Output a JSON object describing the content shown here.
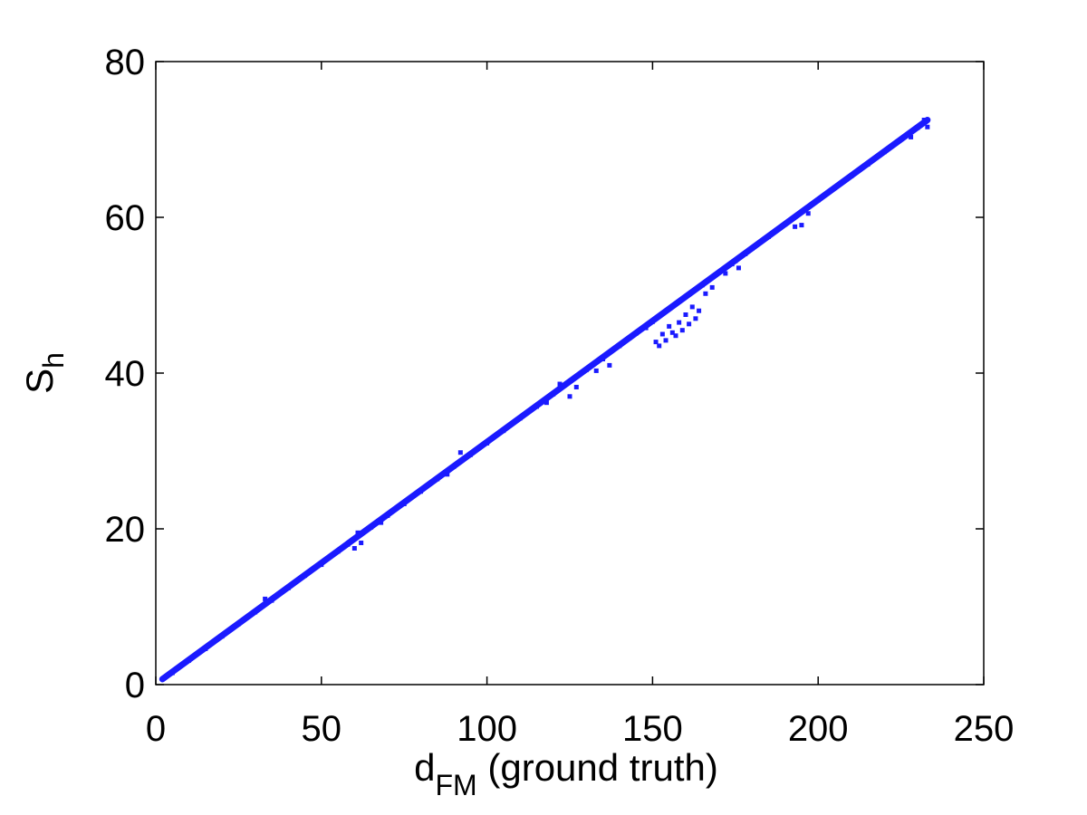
{
  "chart_data": {
    "type": "scatter",
    "title": "",
    "xlabel": "d_FM (ground truth)",
    "xlabel_parts": {
      "base": "d",
      "sub": "FM",
      "rest": " (ground truth)"
    },
    "ylabel": "S_h",
    "ylabel_parts": {
      "base": "S",
      "sub": "h"
    },
    "xlim": [
      0,
      250
    ],
    "ylim": [
      0,
      80
    ],
    "xticks": [
      0,
      50,
      100,
      150,
      200,
      250
    ],
    "xtick_labels": [
      "0",
      "50",
      "100",
      "150",
      "200",
      "250"
    ],
    "yticks": [
      0,
      20,
      40,
      60,
      80
    ],
    "ytick_labels": [
      "0",
      "20",
      "40",
      "60",
      "80"
    ],
    "grid": false,
    "marker": "dot",
    "series": [
      {
        "color": "#1a1aff",
        "trend": {
          "x": [
            2,
            233
          ],
          "y": [
            0.7,
            72.5
          ]
        },
        "points": [
          [
            5,
            1.5
          ],
          [
            10,
            3.1
          ],
          [
            15,
            4.6
          ],
          [
            20,
            6.2
          ],
          [
            25,
            7.8
          ],
          [
            30,
            9.3
          ],
          [
            33,
            11.0
          ],
          [
            35,
            10.8
          ],
          [
            40,
            12.4
          ],
          [
            45,
            14.0
          ],
          [
            50,
            15.4
          ],
          [
            55,
            17.1
          ],
          [
            58,
            18.0
          ],
          [
            60,
            17.5
          ],
          [
            61,
            19.5
          ],
          [
            62,
            18.2
          ],
          [
            65,
            20.2
          ],
          [
            68,
            20.8
          ],
          [
            70,
            21.7
          ],
          [
            75,
            23.2
          ],
          [
            80,
            24.8
          ],
          [
            85,
            26.4
          ],
          [
            88,
            27.0
          ],
          [
            90,
            28.0
          ],
          [
            92,
            29.8
          ],
          [
            95,
            29.5
          ],
          [
            100,
            31.0
          ],
          [
            105,
            32.6
          ],
          [
            110,
            34.2
          ],
          [
            115,
            35.7
          ],
          [
            118,
            36.2
          ],
          [
            120,
            37.3
          ],
          [
            122,
            38.6
          ],
          [
            125,
            37.0
          ],
          [
            127,
            38.2
          ],
          [
            130,
            40.4
          ],
          [
            133,
            40.3
          ],
          [
            135,
            41.8
          ],
          [
            137,
            41.0
          ],
          [
            140,
            43.5
          ],
          [
            143,
            44.5
          ],
          [
            145,
            45.1
          ],
          [
            148,
            45.8
          ],
          [
            150,
            46.6
          ],
          [
            151,
            44.0
          ],
          [
            152,
            43.5
          ],
          [
            153,
            45.0
          ],
          [
            154,
            44.2
          ],
          [
            155,
            46.0
          ],
          [
            156,
            45.2
          ],
          [
            157,
            44.8
          ],
          [
            158,
            46.5
          ],
          [
            159,
            45.5
          ],
          [
            160,
            47.5
          ],
          [
            161,
            46.3
          ],
          [
            162,
            48.5
          ],
          [
            163,
            47.0
          ],
          [
            164,
            48.0
          ],
          [
            165,
            51.3
          ],
          [
            166,
            50.2
          ],
          [
            168,
            51.0
          ],
          [
            170,
            52.9
          ],
          [
            172,
            52.8
          ],
          [
            174,
            54.0
          ],
          [
            175,
            54.4
          ],
          [
            176,
            53.5
          ],
          [
            178,
            55.3
          ],
          [
            180,
            56.0
          ],
          [
            185,
            57.5
          ],
          [
            190,
            59.1
          ],
          [
            193,
            58.8
          ],
          [
            195,
            59.0
          ],
          [
            197,
            60.5
          ],
          [
            200,
            62.2
          ],
          [
            205,
            63.8
          ],
          [
            210,
            65.3
          ],
          [
            215,
            66.8
          ],
          [
            220,
            68.4
          ],
          [
            225,
            70.0
          ],
          [
            228,
            70.3
          ],
          [
            230,
            71.5
          ],
          [
            232,
            72.5
          ],
          [
            233,
            71.6
          ]
        ]
      }
    ]
  }
}
